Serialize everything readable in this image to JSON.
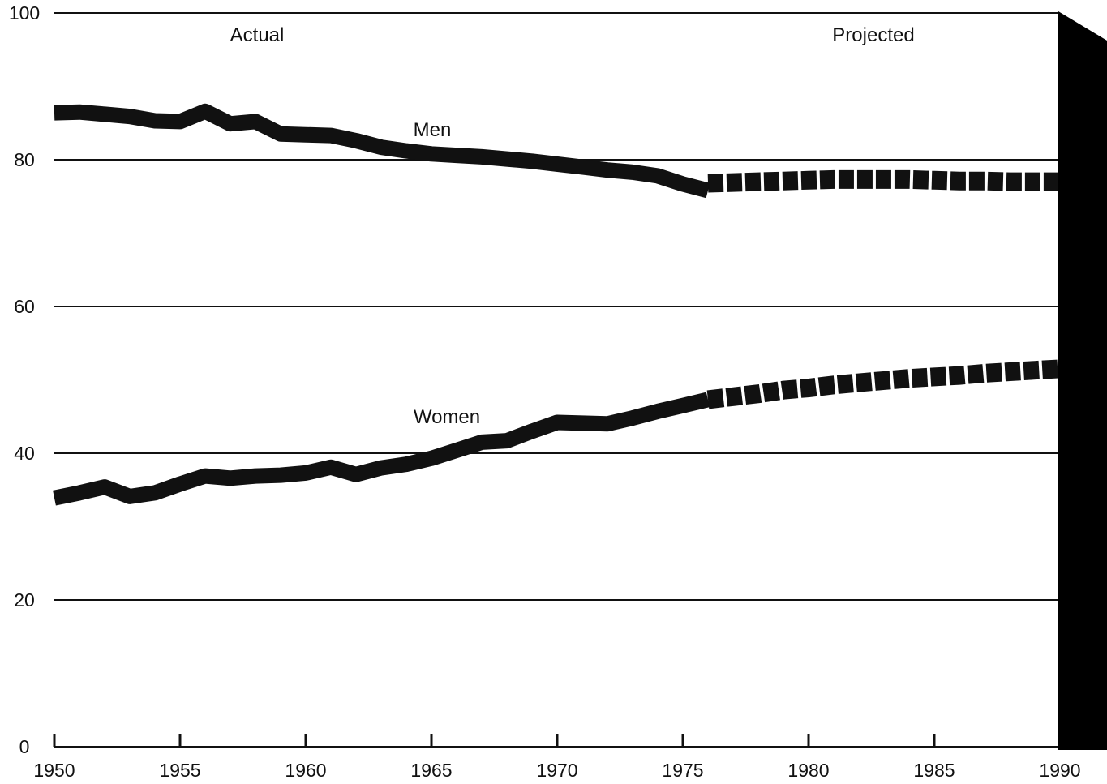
{
  "chart_data": {
    "type": "line",
    "title": "",
    "xlabel": "",
    "ylabel": "",
    "xlim": [
      1950,
      1990
    ],
    "ylim": [
      0,
      100
    ],
    "grid": true,
    "x_ticks": [
      1950,
      1955,
      1960,
      1965,
      1970,
      1975,
      1980,
      1985,
      1990
    ],
    "y_ticks": [
      0,
      20,
      40,
      60,
      80,
      100
    ],
    "x_tick_labels": [
      "1950",
      "1955",
      "1960",
      "1965",
      "1970",
      "1975",
      "1980",
      "1985",
      "1990"
    ],
    "y_tick_labels": [
      "0",
      "20",
      "40",
      "60",
      "80",
      "100"
    ],
    "annotations": [
      {
        "text": "Actual"
      },
      {
        "text": "Projected"
      }
    ],
    "series": [
      {
        "name": "Men",
        "actual": {
          "x": [
            1950,
            1951,
            1952,
            1953,
            1954,
            1955,
            1956,
            1957,
            1958,
            1959,
            1960,
            1961,
            1962,
            1963,
            1964,
            1965,
            1966,
            1967,
            1968,
            1969,
            1970,
            1971,
            1972,
            1973,
            1974,
            1975,
            1976
          ],
          "y": [
            86.4,
            86.5,
            86.2,
            85.9,
            85.3,
            85.2,
            86.6,
            84.9,
            85.2,
            83.5,
            83.4,
            83.3,
            82.6,
            81.7,
            81.2,
            80.8,
            80.6,
            80.4,
            80.1,
            79.8,
            79.4,
            79.0,
            78.6,
            78.3,
            77.8,
            76.7,
            75.8
          ]
        },
        "projected": {
          "x": [
            1976,
            1977,
            1978,
            1979,
            1980,
            1981,
            1982,
            1983,
            1984,
            1985,
            1986,
            1987,
            1988,
            1989,
            1990
          ],
          "y": [
            76.8,
            76.9,
            77.0,
            77.1,
            77.2,
            77.3,
            77.3,
            77.3,
            77.3,
            77.2,
            77.1,
            77.1,
            77.0,
            77.0,
            77.0
          ]
        }
      },
      {
        "name": "Women",
        "actual": {
          "x": [
            1950,
            1951,
            1952,
            1953,
            1954,
            1955,
            1956,
            1957,
            1958,
            1959,
            1960,
            1961,
            1962,
            1963,
            1964,
            1965,
            1966,
            1967,
            1968,
            1969,
            1970,
            1971,
            1972,
            1973,
            1974,
            1975,
            1976
          ],
          "y": [
            33.9,
            34.6,
            35.4,
            34.1,
            34.6,
            35.8,
            36.9,
            36.6,
            36.9,
            37.0,
            37.3,
            38.1,
            37.1,
            38.0,
            38.5,
            39.3,
            40.4,
            41.5,
            41.7,
            43.0,
            44.2,
            44.1,
            44.0,
            44.8,
            45.7,
            46.5,
            47.3
          ]
        },
        "projected": {
          "x": [
            1976,
            1977,
            1978,
            1979,
            1980,
            1981,
            1982,
            1983,
            1984,
            1985,
            1986,
            1987,
            1988,
            1989,
            1990
          ],
          "y": [
            47.3,
            47.7,
            48.1,
            48.6,
            48.9,
            49.3,
            49.6,
            49.9,
            50.2,
            50.4,
            50.6,
            50.9,
            51.1,
            51.3,
            51.5
          ]
        }
      }
    ],
    "colors": {
      "line": "#111111",
      "background": "#ffffff",
      "edge_band": "#000000"
    }
  }
}
